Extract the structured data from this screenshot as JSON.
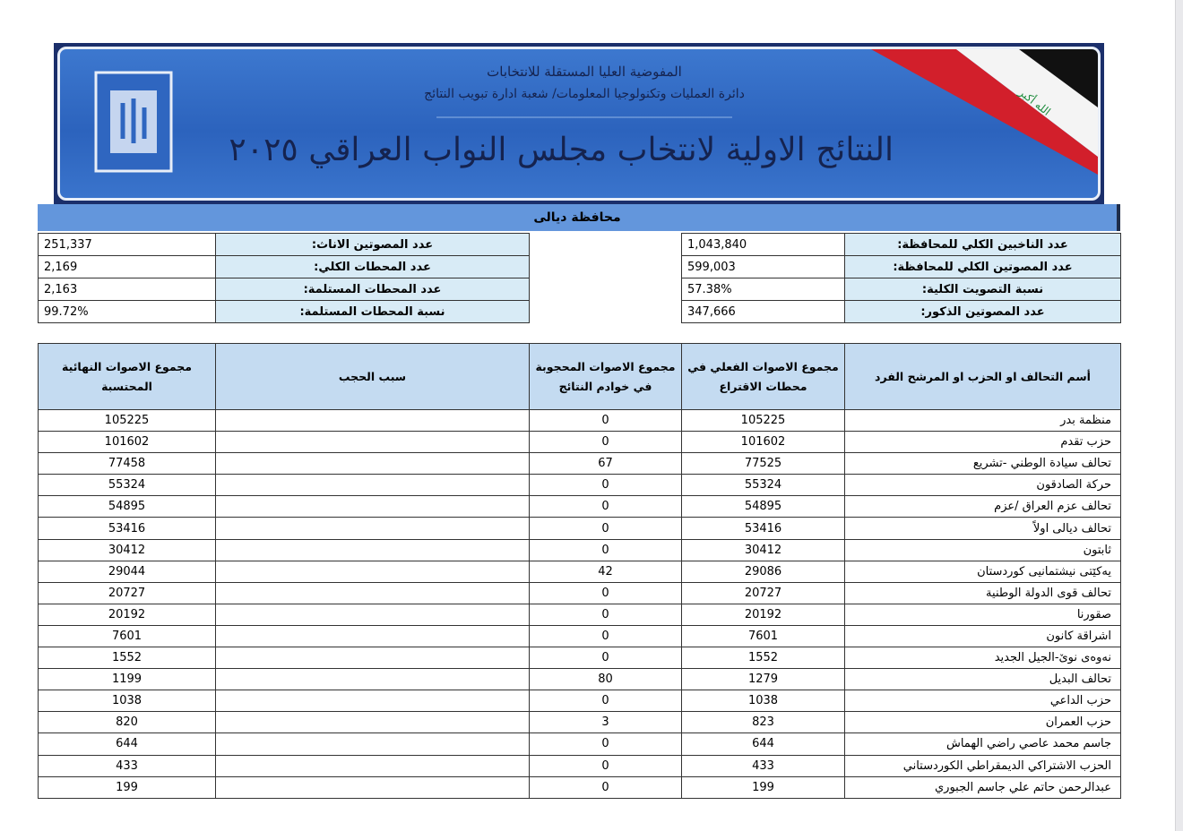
{
  "banner": {
    "commission": "المفوضية العليا المستقلة للانتخابات",
    "department": "دائرة العمليات وتكنولوجيا المعلومات/ شعبة ادارة تبويب النتائج",
    "title": "النتائج الاولية لانتخاب مجلس النواب العراقي ٢٠٢٥",
    "flag_text": "الله أكبر"
  },
  "province": "محافظة ديالى",
  "summary": {
    "right": [
      [
        "عدد الناخبين الكلي للمحافظة:",
        "1,043,840"
      ],
      [
        "عدد المصوتين الكلي للمحافظة:",
        "599,003"
      ],
      [
        "نسبة التصويت الكلية:",
        "57.38%"
      ],
      [
        "عدد المصوتين الذكور:",
        "347,666"
      ]
    ],
    "left": [
      [
        "عدد المصوتين الاناث:",
        "251,337"
      ],
      [
        "عدد المحطات الكلي:",
        "2,169"
      ],
      [
        "عدد المحطات المستلمة:",
        "2,163"
      ],
      [
        "نسبة المحطات المستلمة:",
        "99.72%"
      ]
    ]
  },
  "table": {
    "headers": [
      "أسم التحالف او الحزب او المرشح الفرد",
      "مجموع الاصوات الفعلي في محطات الاقتراع",
      "مجموع الاصوات المحجوبة في خوادم النتائج",
      "سبب الحجب",
      "مجموع الاصوات النهائية المحتسبة"
    ],
    "rows": [
      [
        "منظمة بدر",
        105225,
        0,
        105225
      ],
      [
        "حزب تقدم",
        101602,
        0,
        101602
      ],
      [
        "تحالف سيادة الوطني -تشريع",
        77525,
        67,
        77458
      ],
      [
        "حركة الصادقون",
        55324,
        0,
        55324
      ],
      [
        "تحالف عزم العراق /عزم",
        54895,
        0,
        54895
      ],
      [
        "تحالف ديالى اولاً",
        53416,
        0,
        53416
      ],
      [
        "ثابتون",
        30412,
        0,
        30412
      ],
      [
        "يەکێتی نیشتمانیی کوردستان",
        29086,
        42,
        29044
      ],
      [
        "تحالف قوى الدولة الوطنية",
        20727,
        0,
        20727
      ],
      [
        "صقورنا",
        20192,
        0,
        20192
      ],
      [
        "اشراقة كانون",
        7601,
        0,
        7601
      ],
      [
        "نەوەی نوێ-الجيل الجديد",
        1552,
        0,
        1552
      ],
      [
        "تحالف البديل",
        1279,
        80,
        1199
      ],
      [
        "حزب الداعي",
        1038,
        0,
        1038
      ],
      [
        "حزب العمران",
        823,
        3,
        820
      ],
      [
        "جاسم محمد عاصي راضي الهماش",
        644,
        0,
        644
      ],
      [
        "الحزب الاشتراكي الديمقراطي الكوردستاني",
        433,
        0,
        433
      ],
      [
        "عبدالرحمن حاتم علي جاسم الجبوري",
        199,
        0,
        199
      ]
    ]
  }
}
